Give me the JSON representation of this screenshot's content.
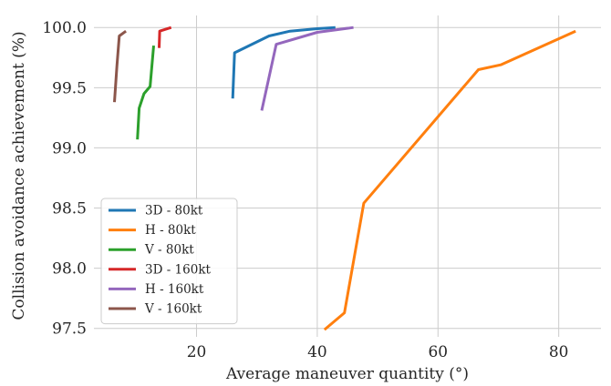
{
  "chart_data": {
    "type": "line",
    "title": "",
    "xlabel": "Average maneuver quantity (°)",
    "ylabel": "Collision avoidance achievement (%)",
    "xlim": [
      3,
      87
    ],
    "ylim": [
      97.43,
      100.1
    ],
    "xticks": [
      20,
      40,
      60,
      80
    ],
    "yticks": [
      97.5,
      98.0,
      98.5,
      99.0,
      99.5,
      100.0
    ],
    "xtick_labels": [
      "20",
      "40",
      "60",
      "80"
    ],
    "ytick_labels": [
      "97.5",
      "98.0",
      "98.5",
      "99.0",
      "99.5",
      "100.0"
    ],
    "grid": true,
    "legend_position": "lower-left",
    "series": [
      {
        "name": "3D - 80kt",
        "color": "#1f77b4",
        "points": [
          [
            26.0,
            99.41
          ],
          [
            26.3,
            99.79
          ],
          [
            32.0,
            99.93
          ],
          [
            35.5,
            99.97
          ],
          [
            40.0,
            99.99
          ],
          [
            43.0,
            100.0
          ]
        ]
      },
      {
        "name": "H - 80kt",
        "color": "#ff7f0e",
        "points": [
          [
            41.2,
            97.49
          ],
          [
            44.5,
            97.63
          ],
          [
            47.7,
            98.54
          ],
          [
            66.7,
            99.65
          ],
          [
            70.4,
            99.69
          ],
          [
            82.8,
            99.97
          ]
        ]
      },
      {
        "name": "V - 80kt",
        "color": "#2ca02c",
        "points": [
          [
            10.2,
            99.07
          ],
          [
            10.5,
            99.33
          ],
          [
            11.3,
            99.45
          ],
          [
            12.3,
            99.51
          ],
          [
            12.9,
            99.85
          ]
        ]
      },
      {
        "name": "3D - 160kt",
        "color": "#d62728",
        "points": [
          [
            13.8,
            99.83
          ],
          [
            13.9,
            99.97
          ],
          [
            15.8,
            100.0
          ]
        ]
      },
      {
        "name": "H - 160kt",
        "color": "#9467bd",
        "points": [
          [
            30.8,
            99.31
          ],
          [
            33.2,
            99.86
          ],
          [
            40.0,
            99.96
          ],
          [
            46.0,
            100.0
          ]
        ]
      },
      {
        "name": "V - 160kt",
        "color": "#8c564b",
        "points": [
          [
            6.4,
            99.38
          ],
          [
            6.8,
            99.68
          ],
          [
            7.2,
            99.93
          ],
          [
            8.3,
            99.97
          ]
        ]
      }
    ]
  }
}
